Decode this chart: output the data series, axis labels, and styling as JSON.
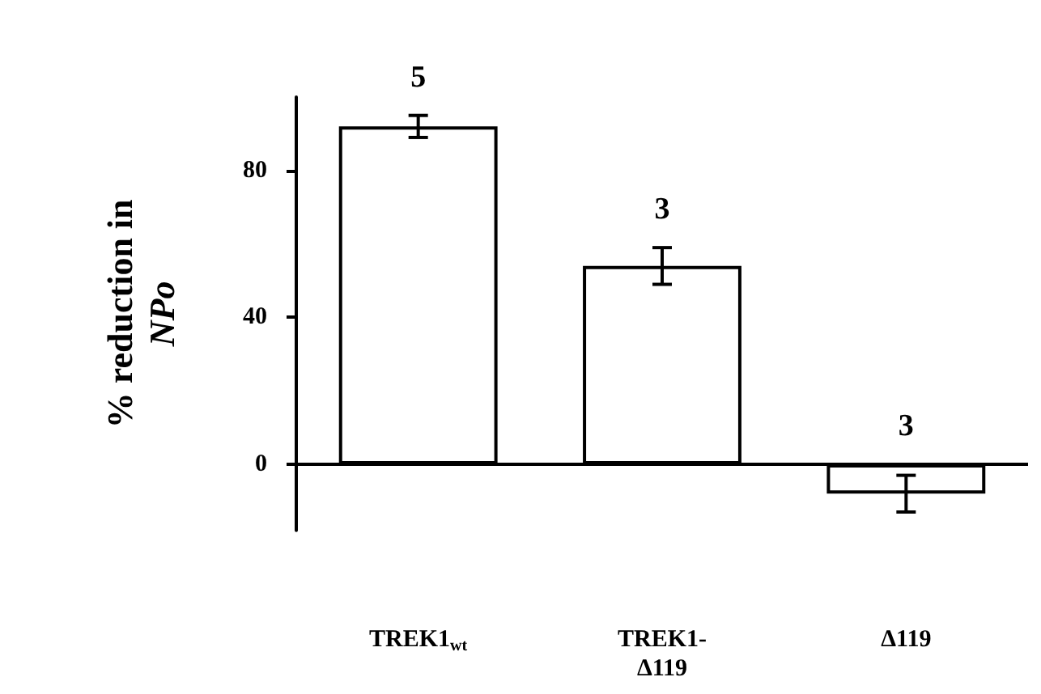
{
  "chart_data": {
    "type": "bar",
    "ylabel": "% reduction in\nNPo",
    "categories": [
      "TREK1$_{wt}$",
      "TREK1-\nΔ119",
      "Δ119"
    ],
    "values": [
      92,
      54,
      -8
    ],
    "errors": [
      3,
      5,
      5
    ],
    "color": "#ffffff",
    "ylim": [
      -18,
      100
    ],
    "yticks": [
      0,
      40,
      80
    ],
    "annotations": [
      {
        "text": "5",
        "x": "TREK1$_{wt}$",
        "y": 95
      },
      {
        "text": "3",
        "x": "TREK1-\nΔ119",
        "y": 59
      },
      {
        "text": "3",
        "x": "Δ119",
        "y": 0
      }
    ]
  }
}
